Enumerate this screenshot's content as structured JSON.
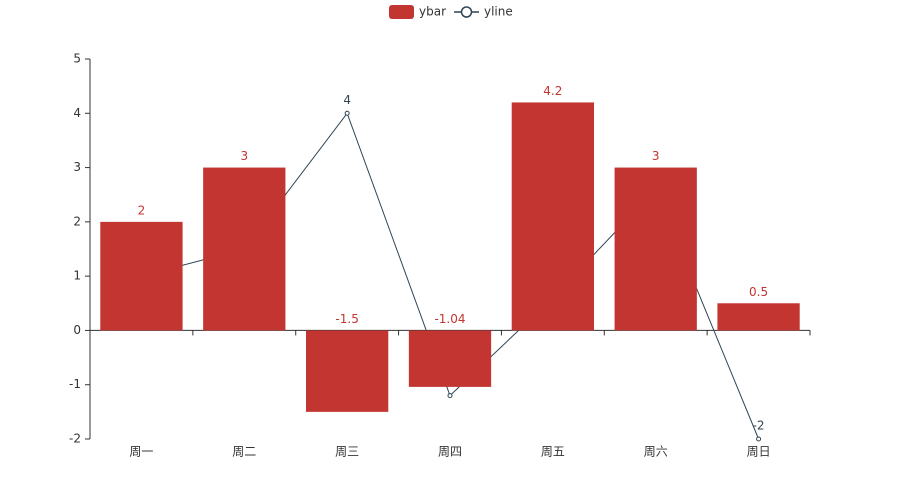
{
  "chart_data": {
    "type": "bar-line",
    "categories": [
      "周一",
      "周二",
      "周三",
      "周四",
      "周五",
      "周六",
      "周日"
    ],
    "series": [
      {
        "name": "ybar",
        "type": "bar",
        "color": "#c23531",
        "values": [
          2,
          3,
          -1.5,
          -1.04,
          4.2,
          3,
          0.5
        ]
      },
      {
        "name": "yline",
        "type": "line",
        "color": "#2f4554",
        "values": [
          1,
          1.5,
          4,
          -1.2,
          0.6,
          2.6,
          -2
        ]
      }
    ],
    "ylim": [
      -2,
      5
    ],
    "yticks": [
      -2,
      -1,
      0,
      1,
      2,
      3,
      4,
      5
    ]
  }
}
